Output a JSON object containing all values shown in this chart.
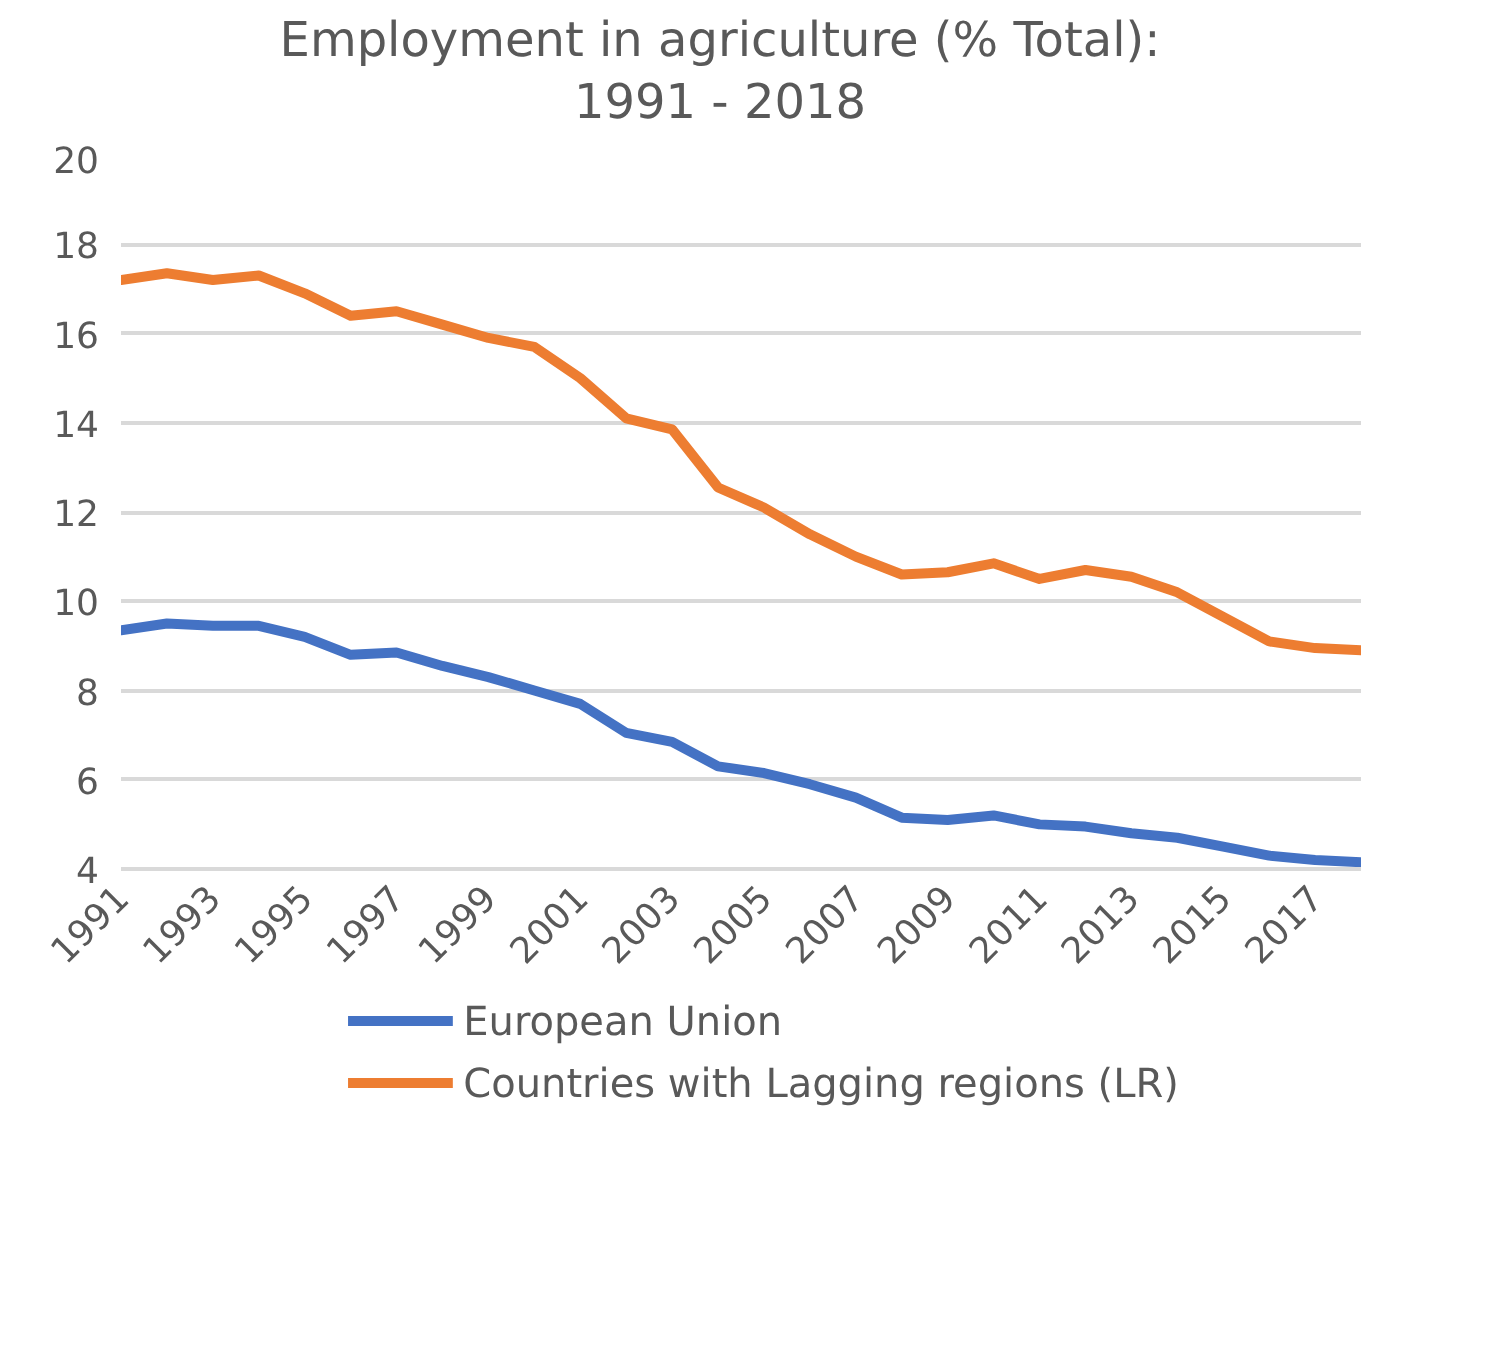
{
  "chart_data": {
    "type": "line",
    "title": "Employment in agriculture (% Total):\n1991 - 2018",
    "x": [
      1991,
      1992,
      1993,
      1994,
      1995,
      1996,
      1997,
      1998,
      1999,
      2000,
      2001,
      2002,
      2003,
      2004,
      2005,
      2006,
      2007,
      2008,
      2009,
      2010,
      2011,
      2012,
      2013,
      2014,
      2015,
      2016,
      2017,
      2018
    ],
    "series": [
      {
        "name": "European Union",
        "color": "#4472c4",
        "values": [
          9.35,
          9.5,
          9.45,
          9.45,
          9.2,
          8.8,
          8.85,
          8.55,
          8.3,
          8.0,
          7.7,
          7.05,
          6.85,
          6.3,
          6.15,
          5.9,
          5.6,
          5.15,
          5.1,
          5.2,
          5.0,
          4.95,
          4.8,
          4.7,
          4.5,
          4.3,
          4.2,
          4.15
        ]
      },
      {
        "name": "Countries with Lagging regions (LR)",
        "color": "#ed7d31",
        "values": [
          17.2,
          17.35,
          17.2,
          17.3,
          16.9,
          16.4,
          16.5,
          16.2,
          15.9,
          15.7,
          15.0,
          14.1,
          13.85,
          12.55,
          12.1,
          11.5,
          11.0,
          10.6,
          10.65,
          10.85,
          10.5,
          10.7,
          10.55,
          10.2,
          9.65,
          9.1,
          8.95,
          8.9
        ]
      }
    ],
    "xlim": [
      1991,
      2018
    ],
    "xticks": [
      1991,
      1993,
      1995,
      1997,
      1999,
      2001,
      2003,
      2005,
      2007,
      2009,
      2011,
      2013,
      2015,
      2017
    ],
    "ylim": [
      4,
      20
    ],
    "yticks": [
      4,
      6,
      8,
      10,
      12,
      14,
      16,
      18,
      20
    ],
    "grid": "y",
    "legend": "bottom",
    "marker": "none",
    "line_style": "solid"
  }
}
